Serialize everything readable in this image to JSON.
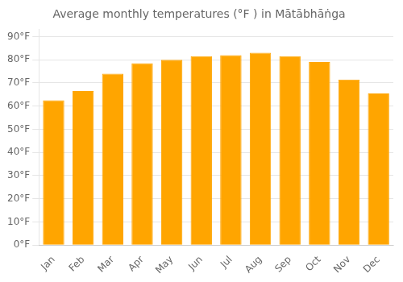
{
  "chart_data": {
    "type": "bar",
    "title": "Average monthly temperatures (°F ) in Mātābhāṅga",
    "categories": [
      "Jan",
      "Feb",
      "Mar",
      "Apr",
      "May",
      "Jun",
      "Jul",
      "Aug",
      "Sep",
      "Oct",
      "Nov",
      "Dec"
    ],
    "values": [
      62.5,
      66.5,
      74.0,
      78.5,
      80.0,
      81.5,
      82.0,
      83.0,
      81.5,
      79.0,
      71.5,
      65.5
    ],
    "color": "#FFA500",
    "ylim": [
      0,
      93
    ],
    "yticks": [
      {
        "value": 0,
        "label": "0°F"
      },
      {
        "value": 10,
        "label": "10°F"
      },
      {
        "value": 20,
        "label": "20°F"
      },
      {
        "value": 30,
        "label": "30°F"
      },
      {
        "value": 40,
        "label": "40°F"
      },
      {
        "value": 50,
        "label": "50°F"
      },
      {
        "value": 60,
        "label": "60°F"
      },
      {
        "value": 70,
        "label": "70°F"
      },
      {
        "value": 80,
        "label": "80°F"
      },
      {
        "value": 90,
        "label": "90°F"
      }
    ],
    "grid": true
  }
}
